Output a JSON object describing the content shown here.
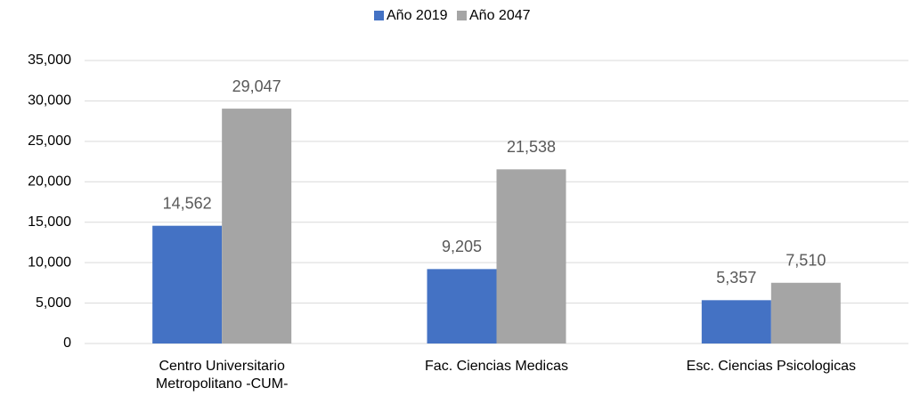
{
  "chart_data": {
    "type": "bar",
    "categories": [
      "Centro Universitario Metropolitano -CUM-",
      "Fac. Ciencias Medicas",
      "Esc. Ciencias Psicologicas"
    ],
    "series": [
      {
        "name": "Año 2019",
        "color": "#4472c4",
        "values": [
          14562,
          9205,
          5357
        ],
        "value_labels": [
          "14,562",
          "9,205",
          "5,357"
        ]
      },
      {
        "name": "Año 2047",
        "color": "#a5a5a5",
        "values": [
          29047,
          21538,
          7510
        ],
        "value_labels": [
          "29,047",
          "21,538",
          "7,510"
        ]
      }
    ],
    "ylim": [
      0,
      35000
    ],
    "yticks": [
      {
        "value": 0,
        "label": "0"
      },
      {
        "value": 5000,
        "label": "5,000"
      },
      {
        "value": 10000,
        "label": "10,000"
      },
      {
        "value": 15000,
        "label": "15,000"
      },
      {
        "value": 20000,
        "label": "20,000"
      },
      {
        "value": 25000,
        "label": "25,000"
      },
      {
        "value": 30000,
        "label": "30,000"
      },
      {
        "value": 35000,
        "label": "35,000"
      }
    ],
    "grid": true,
    "legend": "top"
  }
}
